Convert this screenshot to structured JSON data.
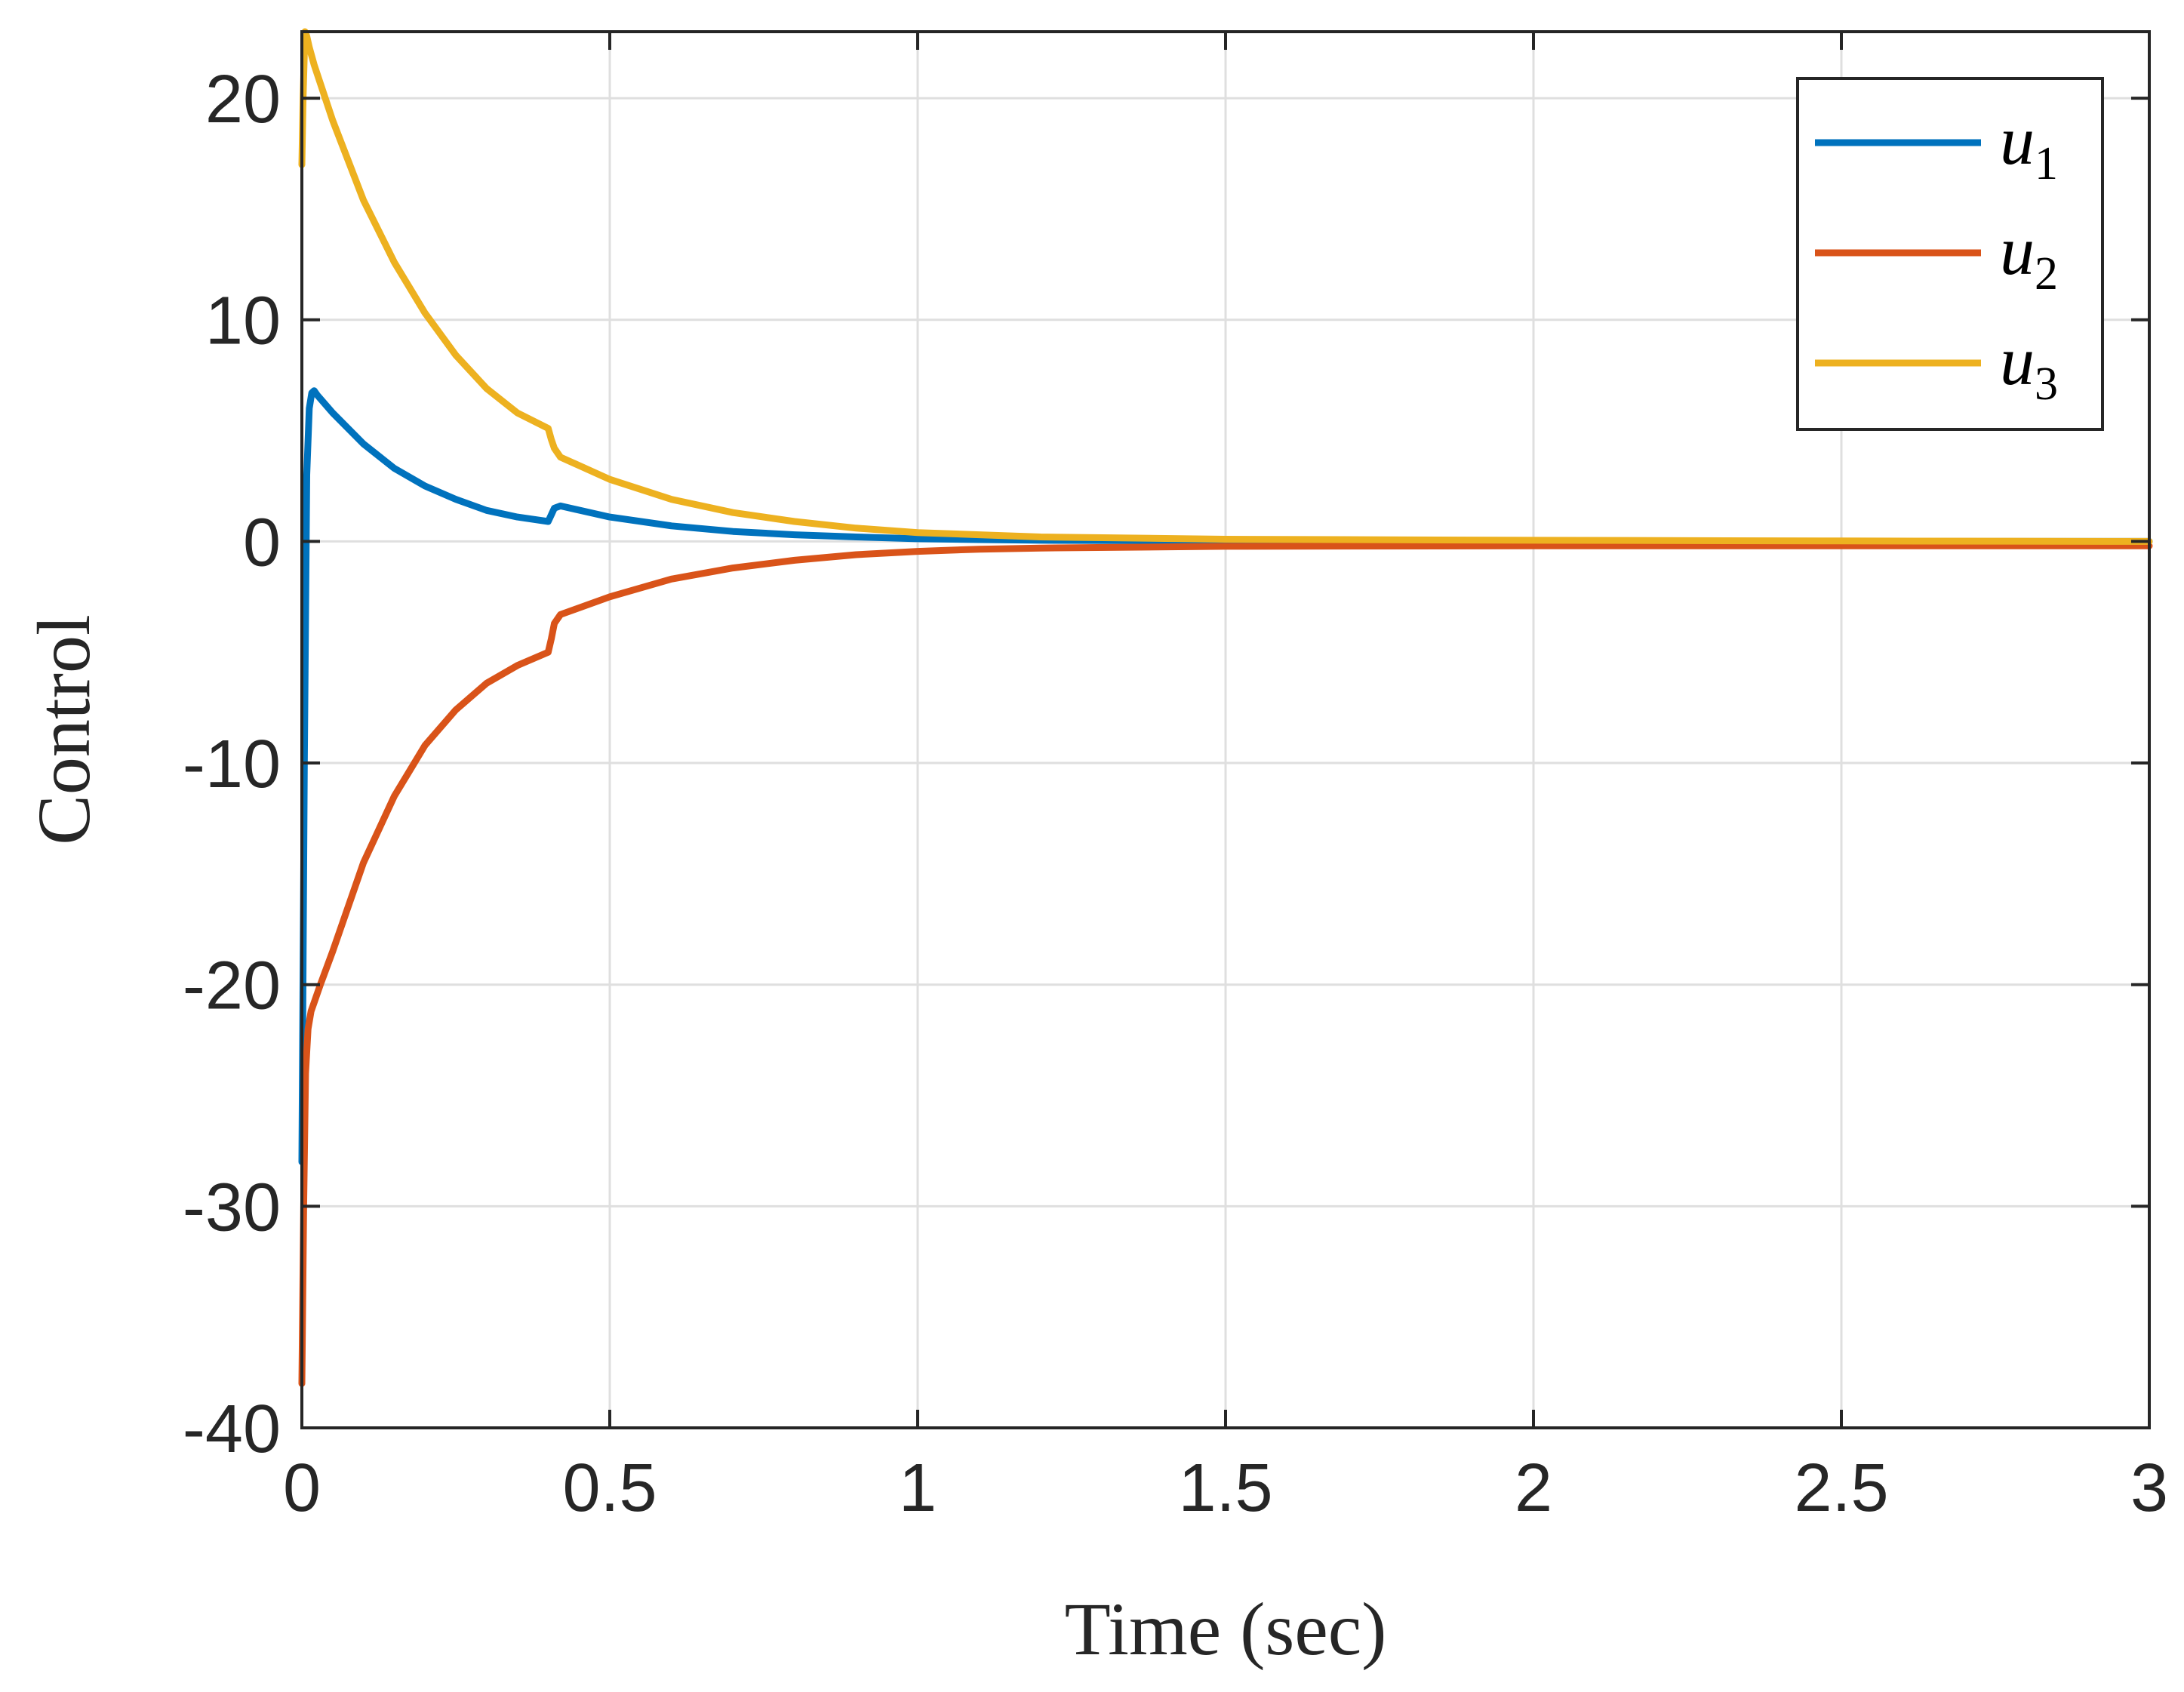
{
  "chart_data": {
    "type": "line",
    "title": "",
    "xlabel": "Time (sec)",
    "ylabel": "Control",
    "xlim": [
      0,
      3
    ],
    "ylim": [
      -40,
      23
    ],
    "xticks": [
      0,
      0.5,
      1,
      1.5,
      2,
      2.5,
      3
    ],
    "yticks": [
      -40,
      -30,
      -20,
      -10,
      0,
      10,
      20
    ],
    "xtick_labels": [
      "0",
      "0.5",
      "1",
      "1.5",
      "2",
      "2.5",
      "3"
    ],
    "ytick_labels": [
      "-40",
      "-30",
      "-20",
      "-10",
      "0",
      "10",
      "20"
    ],
    "grid": true,
    "legend_position": "top-right",
    "series": [
      {
        "name": "u1",
        "legend_base": "u",
        "legend_sub": "1",
        "color": "#0072BD",
        "x": [
          0,
          0.004,
          0.008,
          0.012,
          0.016,
          0.02,
          0.025,
          0.05,
          0.1,
          0.15,
          0.2,
          0.25,
          0.3,
          0.35,
          0.4,
          0.405,
          0.41,
          0.42,
          0.5,
          0.6,
          0.7,
          0.8,
          0.9,
          1.0,
          1.1,
          1.2,
          1.5,
          2.0,
          2.5,
          3.0
        ],
        "y": [
          -28,
          -10,
          3,
          6,
          6.7,
          6.8,
          6.6,
          5.8,
          4.4,
          3.3,
          2.5,
          1.9,
          1.4,
          1.1,
          0.9,
          1.2,
          1.5,
          1.6,
          1.1,
          0.7,
          0.45,
          0.3,
          0.2,
          0.12,
          0.08,
          0.05,
          0.02,
          0.0,
          0.0,
          0.0
        ]
      },
      {
        "name": "u2",
        "legend_base": "u",
        "legend_sub": "2",
        "color": "#D95319",
        "x": [
          0,
          0.003,
          0.006,
          0.01,
          0.015,
          0.02,
          0.03,
          0.05,
          0.1,
          0.15,
          0.2,
          0.25,
          0.3,
          0.35,
          0.4,
          0.405,
          0.41,
          0.42,
          0.5,
          0.6,
          0.7,
          0.8,
          0.9,
          1.0,
          1.1,
          1.2,
          1.5,
          2.0,
          2.5,
          3.0
        ],
        "y": [
          -38,
          -30,
          -24,
          -22,
          -21.2,
          -20.8,
          -20.0,
          -18.5,
          -14.5,
          -11.5,
          -9.2,
          -7.6,
          -6.4,
          -5.6,
          -5.0,
          -4.4,
          -3.7,
          -3.3,
          -2.5,
          -1.7,
          -1.2,
          -0.85,
          -0.6,
          -0.45,
          -0.35,
          -0.3,
          -0.22,
          -0.2,
          -0.2,
          -0.2
        ]
      },
      {
        "name": "u3",
        "legend_base": "u",
        "legend_sub": "3",
        "color": "#EDB120",
        "x": [
          0,
          0.002,
          0.005,
          0.008,
          0.012,
          0.02,
          0.05,
          0.1,
          0.15,
          0.2,
          0.25,
          0.3,
          0.35,
          0.4,
          0.405,
          0.41,
          0.42,
          0.5,
          0.6,
          0.7,
          0.8,
          0.9,
          1.0,
          1.1,
          1.2,
          1.5,
          2.0,
          2.5,
          3.0
        ],
        "y": [
          17,
          20,
          23,
          22.8,
          22.3,
          21.5,
          19.0,
          15.4,
          12.6,
          10.3,
          8.4,
          6.9,
          5.8,
          5.1,
          4.6,
          4.2,
          3.8,
          2.8,
          1.9,
          1.3,
          0.9,
          0.6,
          0.4,
          0.3,
          0.2,
          0.1,
          0.05,
          0.02,
          0.0
        ]
      }
    ]
  }
}
